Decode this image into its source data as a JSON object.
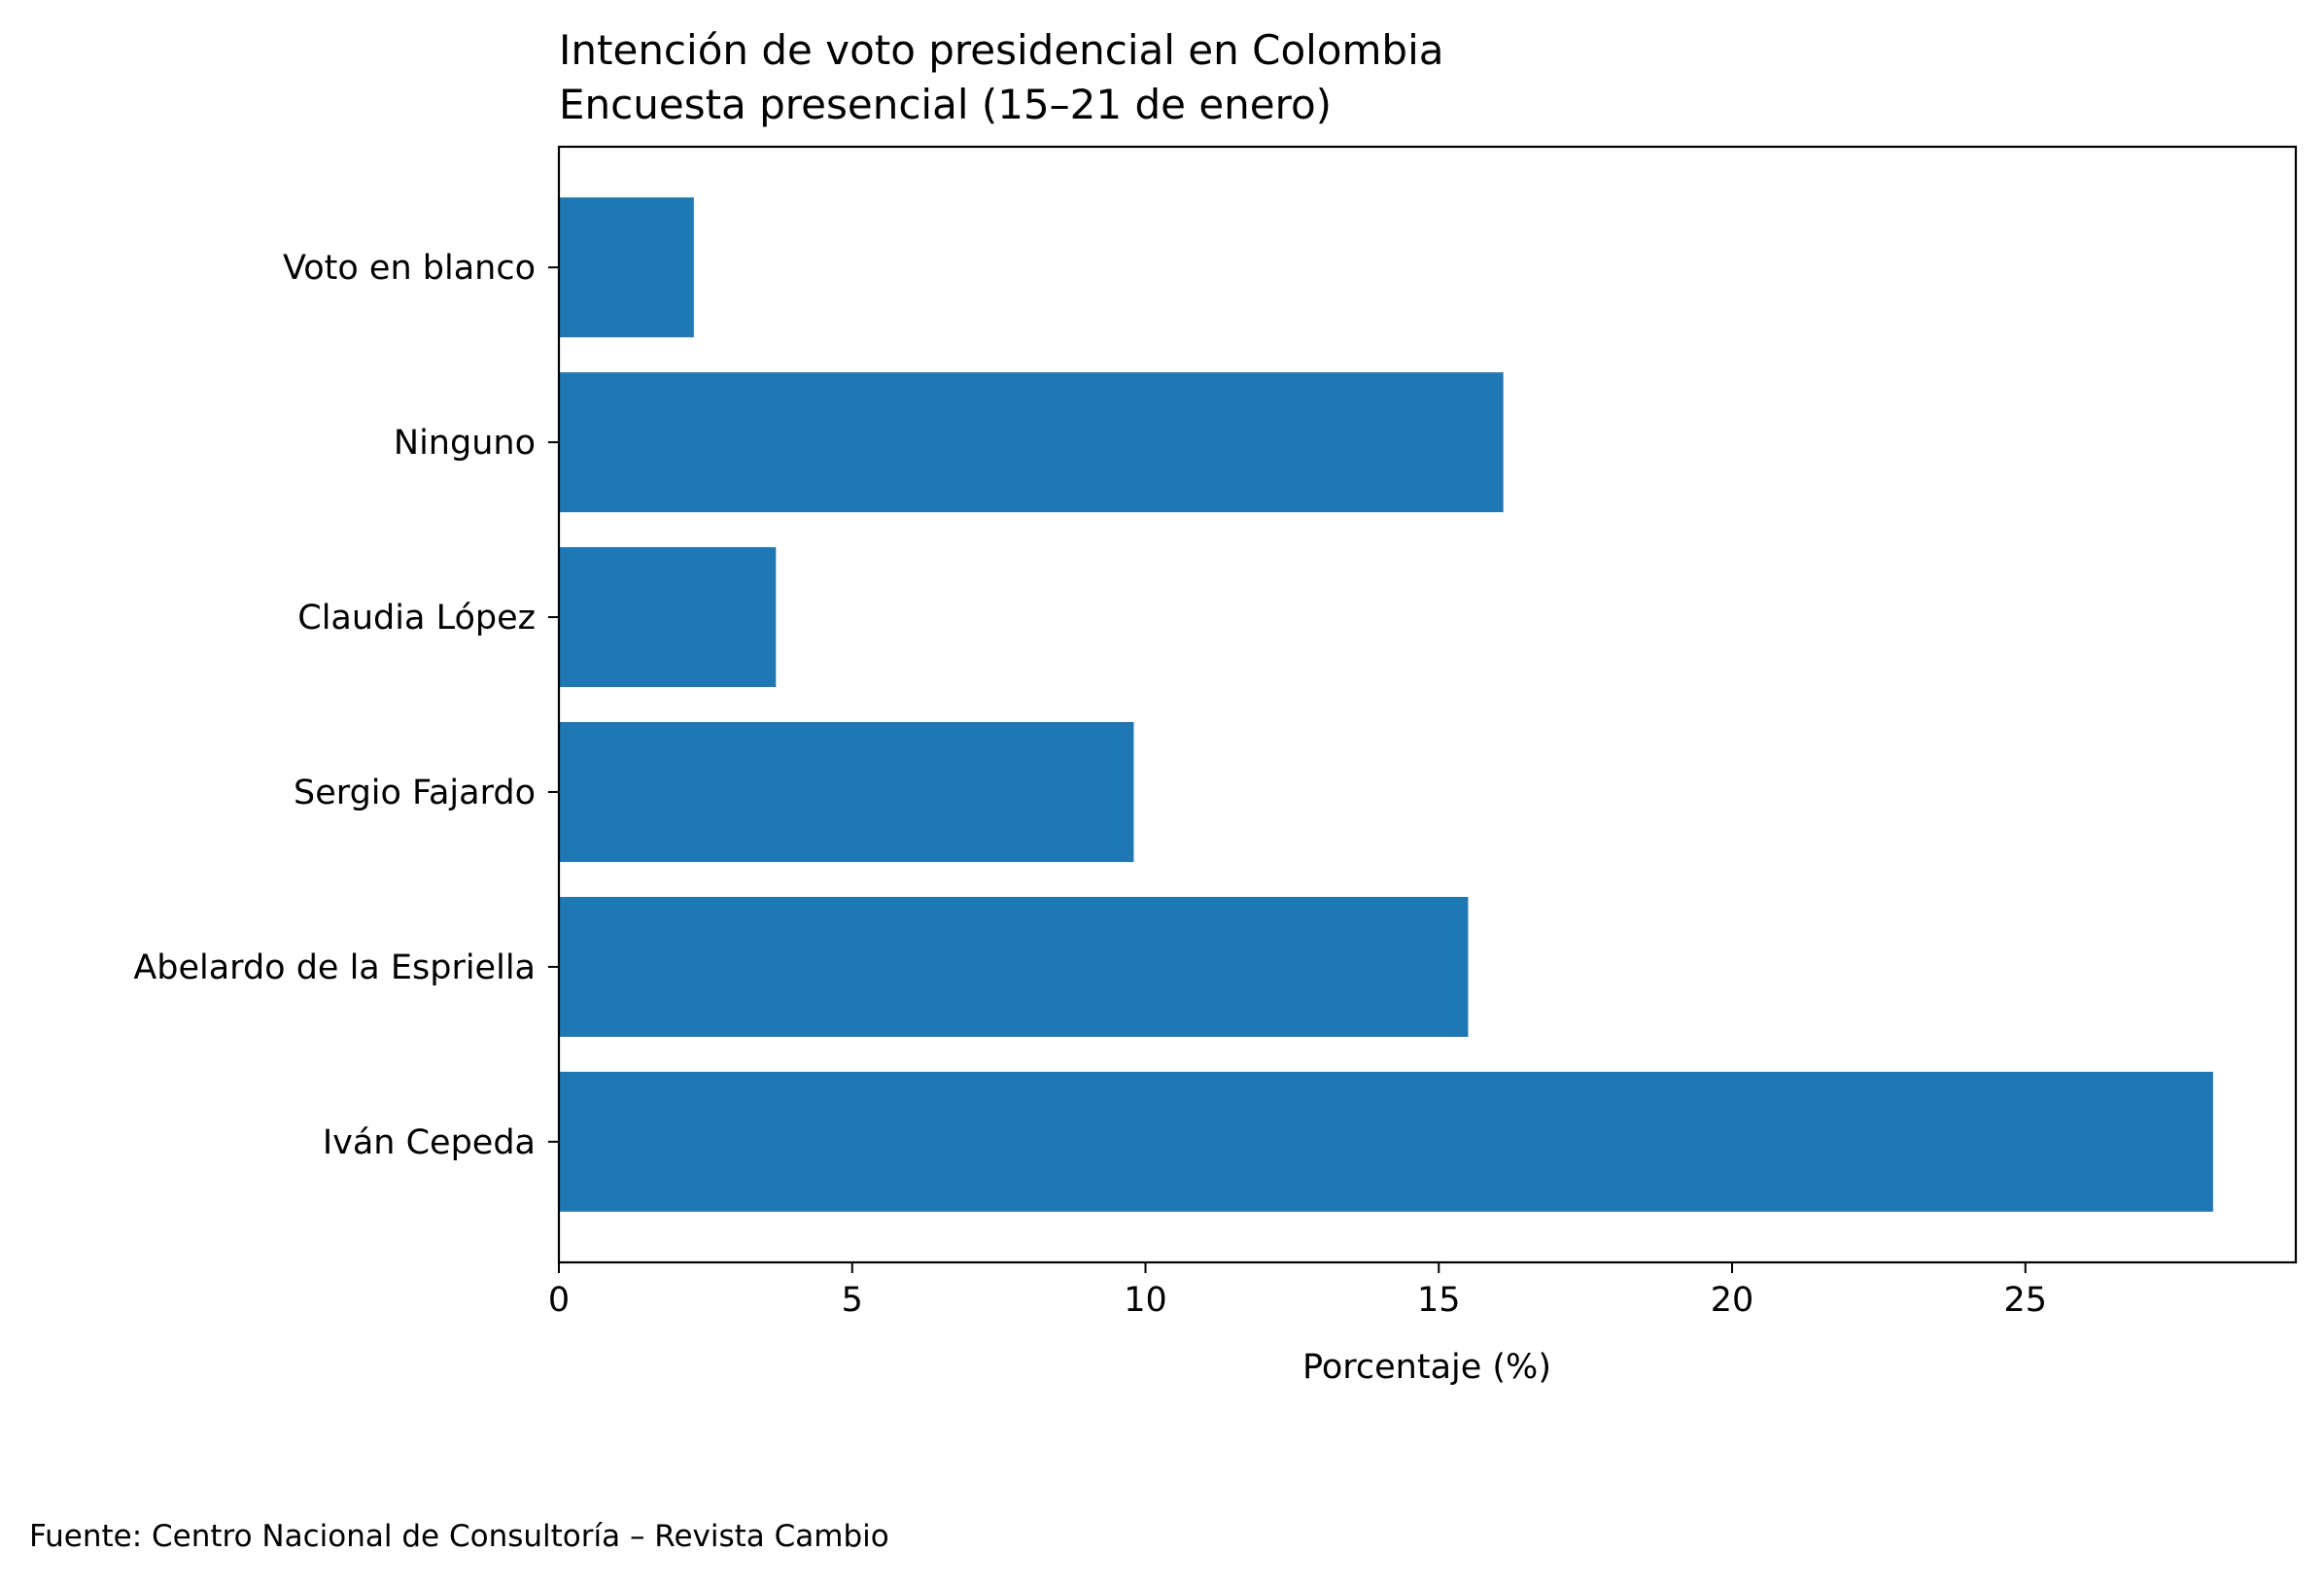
{
  "chart_data": {
    "type": "bar",
    "orientation": "horizontal",
    "title": "Intención de voto presidencial en Colombia",
    "subtitle": "Encuesta presencial (15–21 de enero)",
    "xlabel": "Porcentaje (%)",
    "ylabel": "",
    "categories": [
      "Iván Cepeda",
      "Abelardo de la Espriella",
      "Sergio Fajardo",
      "Claudia López",
      "Ninguno",
      "Voto en blanco"
    ],
    "values": [
      28.2,
      15.5,
      9.8,
      3.7,
      16.1,
      2.3
    ],
    "xlim": [
      0,
      29.61
    ],
    "xticks": [
      "0",
      "5",
      "10",
      "15",
      "20",
      "25"
    ],
    "grid": false,
    "bar_color": "#1f77b4",
    "footnote": "Fuente: Centro Nacional de Consultoría – Revista Cambio"
  }
}
